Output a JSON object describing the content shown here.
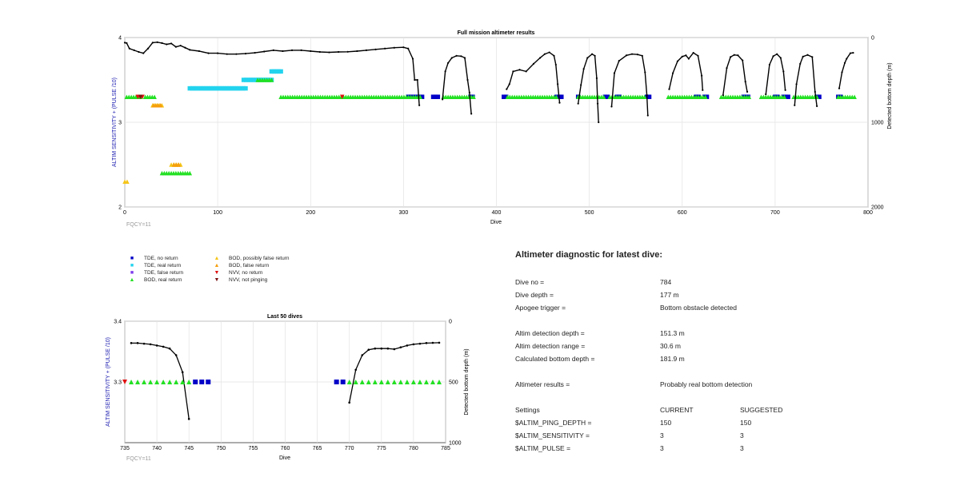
{
  "colors": {
    "tde_no_return": "#0000c8",
    "tde_real_return": "#22d3ee",
    "tde_false_return": "#7c3aed",
    "bod_real_return": "#22e022",
    "bod_possibly_false": "#f5c518",
    "bod_false_return": "#f59e0b",
    "nvv_no_return": "#e01010",
    "nvv_not_pinging": "#7a1010",
    "depth_line": "#000000",
    "left_axis_label": "#1a1ab0"
  },
  "chart_data": [
    {
      "type": "scatter",
      "title": "Full mission altimeter results",
      "xlabel": "Dive",
      "ylabel": "ALTIM SENSITIVITY + (PULSE /10)",
      "y2label": "Detected bottom depth (m)",
      "annotation": "FQCY=11",
      "xlim": [
        0,
        800
      ],
      "ylim": [
        2,
        4
      ],
      "y2lim": [
        2000,
        0
      ],
      "xticks": [
        "0",
        "100",
        "200",
        "300",
        "400",
        "500",
        "600",
        "700",
        "800"
      ],
      "yticks": [
        "2",
        "3",
        "4"
      ],
      "y2ticks": [
        "0",
        "1000",
        "2000"
      ],
      "grid": true,
      "series": [
        {
          "name": "TDE, no return",
          "marker": "square",
          "color_key": "tde_no_return",
          "segments": [
            [
              305,
              320,
              3.3
            ],
            [
              332,
              337,
              3.3
            ],
            [
              372,
              376,
              3.3
            ],
            [
              408,
              412,
              3.3
            ],
            [
              465,
              470,
              3.3
            ],
            [
              488,
              490,
              3.3
            ],
            [
              517,
              521,
              3.3
            ],
            [
              530,
              533,
              3.3
            ],
            [
              562,
              566,
              3.3
            ],
            [
              615,
              618,
              3.3
            ],
            [
              624,
              627,
              3.3
            ],
            [
              666,
              672,
              3.3
            ],
            [
              700,
              704,
              3.3
            ],
            [
              709,
              714,
              3.3
            ],
            [
              745,
              748,
              3.3
            ],
            [
              768,
              772,
              3.3
            ]
          ]
        },
        {
          "name": "TDE, real return",
          "marker": "square",
          "color_key": "tde_real_return",
          "segments": [
            [
              70,
              132,
              3.4
            ],
            [
              128,
              160,
              3.5
            ],
            [
              158,
              170,
              3.6
            ]
          ]
        },
        {
          "name": "BOD, real return",
          "marker": "triangle-up",
          "color_key": "bod_real_return",
          "segments": [
            [
              2,
              18,
              3.3
            ],
            [
              22,
              32,
              3.3
            ],
            [
              168,
              320,
              3.3
            ],
            [
              343,
              376,
              3.3
            ],
            [
              412,
              466,
              3.3
            ],
            [
              488,
              516,
              3.3
            ],
            [
              522,
              560,
              3.3
            ],
            [
              585,
              625,
              3.3
            ],
            [
              642,
              672,
              3.3
            ],
            [
              685,
              710,
              3.3
            ],
            [
              720,
              745,
              3.3
            ],
            [
              768,
              786,
              3.3
            ],
            [
              143,
              160,
              3.5
            ],
            [
              40,
              58,
              2.4
            ],
            [
              60,
              72,
              2.4
            ]
          ]
        },
        {
          "name": "BOD, possibly false return",
          "marker": "triangle-up",
          "color_key": "bod_possibly_false",
          "segments": [
            [
              30,
              42,
              3.2
            ],
            [
              50,
              62,
              2.5
            ],
            [
              0,
              3,
              2.3
            ]
          ]
        },
        {
          "name": "BOD, false return",
          "marker": "triangle-up",
          "color_key": "bod_false_return",
          "segments": [
            [
              31,
              40,
              3.2
            ],
            [
              53,
              60,
              2.5
            ]
          ]
        },
        {
          "name": "NVV, no return",
          "marker": "triangle-down",
          "color_key": "nvv_no_return",
          "segments": [
            [
              14,
              20,
              3.3
            ],
            [
              234,
              235,
              3.3
            ]
          ]
        },
        {
          "name": "NVV, not pinging",
          "marker": "triangle-down",
          "color_key": "nvv_not_pinging",
          "segments": [
            [
              17,
              19,
              3.3
            ]
          ]
        }
      ],
      "depth": [
        [
          [
            0,
            60
          ],
          [
            2,
            65
          ],
          [
            5,
            130
          ],
          [
            10,
            150
          ],
          [
            15,
            170
          ],
          [
            20,
            185
          ],
          [
            25,
            130
          ],
          [
            30,
            60
          ],
          [
            35,
            55
          ],
          [
            40,
            65
          ],
          [
            45,
            80
          ],
          [
            50,
            70
          ],
          [
            55,
            110
          ],
          [
            60,
            95
          ],
          [
            65,
            120
          ],
          [
            70,
            145
          ],
          [
            80,
            160
          ],
          [
            90,
            185
          ],
          [
            100,
            185
          ],
          [
            110,
            195
          ],
          [
            120,
            195
          ],
          [
            130,
            190
          ],
          [
            140,
            180
          ],
          [
            150,
            165
          ],
          [
            160,
            150
          ],
          [
            170,
            160
          ],
          [
            180,
            150
          ],
          [
            190,
            150
          ],
          [
            200,
            160
          ],
          [
            210,
            170
          ],
          [
            220,
            175
          ],
          [
            230,
            170
          ],
          [
            240,
            168
          ],
          [
            250,
            160
          ],
          [
            260,
            150
          ],
          [
            270,
            140
          ],
          [
            280,
            130
          ],
          [
            290,
            120
          ],
          [
            300,
            115
          ],
          [
            305,
            130
          ],
          [
            310,
            250
          ],
          [
            312,
            500
          ],
          [
            315,
            500
          ],
          [
            317,
            800
          ]
        ],
        [
          [
            342,
            730
          ],
          [
            345,
            400
          ],
          [
            348,
            300
          ],
          [
            352,
            240
          ],
          [
            357,
            215
          ],
          [
            362,
            220
          ],
          [
            366,
            240
          ],
          [
            369,
            500
          ],
          [
            371,
            650
          ],
          [
            373,
            900
          ]
        ],
        [
          [
            411,
            610
          ],
          [
            414,
            550
          ],
          [
            418,
            400
          ],
          [
            425,
            380
          ],
          [
            432,
            400
          ],
          [
            440,
            310
          ],
          [
            447,
            240
          ],
          [
            452,
            195
          ],
          [
            457,
            175
          ],
          [
            462,
            215
          ],
          [
            464,
            320
          ],
          [
            466,
            550
          ],
          [
            468,
            770
          ]
        ],
        [
          [
            488,
            780
          ],
          [
            491,
            560
          ],
          [
            494,
            370
          ],
          [
            498,
            240
          ],
          [
            503,
            195
          ],
          [
            506,
            215
          ],
          [
            508,
            480
          ],
          [
            509,
            780
          ],
          [
            510,
            1000
          ]
        ],
        [
          [
            524,
            815
          ],
          [
            527,
            420
          ],
          [
            532,
            275
          ],
          [
            540,
            210
          ],
          [
            546,
            195
          ],
          [
            552,
            200
          ],
          [
            557,
            215
          ],
          [
            560,
            410
          ],
          [
            562,
            680
          ],
          [
            563,
            920
          ]
        ],
        [
          [
            586,
            610
          ],
          [
            590,
            420
          ],
          [
            595,
            280
          ],
          [
            600,
            225
          ],
          [
            604,
            210
          ],
          [
            607,
            250
          ],
          [
            612,
            180
          ],
          [
            617,
            215
          ],
          [
            621,
            450
          ],
          [
            622,
            620
          ]
        ],
        [
          [
            644,
            680
          ],
          [
            648,
            360
          ],
          [
            652,
            230
          ],
          [
            656,
            205
          ],
          [
            660,
            210
          ],
          [
            665,
            270
          ],
          [
            668,
            520
          ],
          [
            670,
            640
          ]
        ],
        [
          [
            690,
            670
          ],
          [
            694,
            320
          ],
          [
            698,
            220
          ],
          [
            702,
            195
          ],
          [
            706,
            240
          ],
          [
            709,
            400
          ],
          [
            711,
            620
          ]
        ],
        [
          [
            721,
            800
          ],
          [
            723,
            550
          ],
          [
            727,
            310
          ],
          [
            730,
            225
          ],
          [
            735,
            205
          ],
          [
            740,
            230
          ],
          [
            743,
            640
          ],
          [
            745,
            810
          ]
        ],
        [
          [
            769,
            600
          ],
          [
            772,
            410
          ],
          [
            775,
            300
          ],
          [
            777,
            250
          ],
          [
            781,
            185
          ],
          [
            784,
            180
          ]
        ]
      ]
    },
    {
      "type": "scatter",
      "title": "Last 50 dives",
      "xlabel": "Dive",
      "ylabel": "ALTIM SENSITIVITY + (PULSE /10)",
      "y2label": "Detected bottom depth (m)",
      "annotation": "FQCY=11",
      "xlim": [
        735,
        785
      ],
      "ylim": [
        3.2,
        3.4
      ],
      "y2lim": [
        1000,
        0
      ],
      "xticks": [
        "735",
        "740",
        "745",
        "750",
        "755",
        "760",
        "765",
        "770",
        "775",
        "780",
        "785"
      ],
      "yticks": [
        "3.3",
        "3.4"
      ],
      "y2ticks": [
        "0",
        "500",
        "1000"
      ],
      "grid": true,
      "series": [
        {
          "name": "BOD, real return",
          "marker": "triangle-up",
          "color_key": "bod_real_return",
          "points": [
            736,
            737,
            738,
            739,
            740,
            741,
            742,
            743,
            744,
            745,
            770,
            771,
            772,
            773,
            774,
            775,
            776,
            777,
            778,
            779,
            780,
            781,
            782,
            783,
            784
          ],
          "value": 3.3
        },
        {
          "name": "TDE, no return",
          "marker": "square",
          "color_key": "tde_no_return",
          "points": [
            746,
            747,
            748,
            768,
            769
          ],
          "value": 3.3
        },
        {
          "name": "NVV, no return",
          "marker": "triangle-down",
          "color_key": "nvv_no_return",
          "points": [
            735
          ],
          "value": 3.3
        }
      ],
      "depth": [
        [
          [
            736,
            180
          ],
          [
            737,
            180
          ],
          [
            738,
            185
          ],
          [
            739,
            190
          ],
          [
            740,
            200
          ],
          [
            741,
            210
          ],
          [
            742,
            225
          ],
          [
            743,
            280
          ],
          [
            744,
            420
          ],
          [
            745,
            805
          ]
        ],
        [
          [
            770,
            670
          ],
          [
            771,
            400
          ],
          [
            772,
            280
          ],
          [
            773,
            235
          ],
          [
            774,
            225
          ],
          [
            775,
            225
          ],
          [
            776,
            225
          ],
          [
            777,
            230
          ],
          [
            778,
            215
          ],
          [
            779,
            200
          ],
          [
            780,
            190
          ],
          [
            781,
            185
          ],
          [
            782,
            180
          ],
          [
            783,
            178
          ],
          [
            784,
            177
          ]
        ]
      ]
    }
  ],
  "legend": [
    {
      "label": "TDE, no return",
      "symbol": "■",
      "color_key": "tde_no_return"
    },
    {
      "label": "TDE, real return",
      "symbol": "■",
      "color_key": "tde_real_return"
    },
    {
      "label": "TDE, false return",
      "symbol": "■",
      "color_key": "tde_false_return"
    },
    {
      "label": "BOD, real return",
      "symbol": "▲",
      "color_key": "bod_real_return"
    },
    {
      "label": "BOD, possibly false return",
      "symbol": "▲",
      "color_key": "bod_possibly_false"
    },
    {
      "label": "BOD, false return",
      "symbol": "▲",
      "color_key": "bod_false_return"
    },
    {
      "label": "NVV, no return",
      "symbol": "▼",
      "color_key": "nvv_no_return"
    },
    {
      "label": "NVV, not pinging",
      "symbol": "▼",
      "color_key": "nvv_not_pinging"
    }
  ],
  "diagnostic": {
    "title": "Altimeter diagnostic for latest dive:",
    "rows": [
      {
        "label": "Dive no =",
        "value": "784"
      },
      {
        "label": "Dive depth =",
        "value": "177 m"
      },
      {
        "label": "Apogee trigger =",
        "value": "Bottom obstacle detected"
      },
      {
        "label": "Altim detection depth =",
        "value": "151.3 m"
      },
      {
        "label": "Altim detection range =",
        "value": "30.6 m"
      },
      {
        "label": "Calculated bottom depth =",
        "value": "181.9 m"
      },
      {
        "label": "Altimeter results =",
        "value": "Probably real bottom detection"
      }
    ],
    "settings_header": {
      "label": "Settings",
      "current": "CURRENT",
      "suggested": "SUGGESTED"
    },
    "settings": [
      {
        "name": "$ALTIM_PING_DEPTH =",
        "current": "150",
        "suggested": "150"
      },
      {
        "name": "$ALTIM_SENSITIVITY =",
        "current": "3",
        "suggested": "3"
      },
      {
        "name": "$ALTIM_PULSE =",
        "current": "3",
        "suggested": "3"
      }
    ]
  }
}
